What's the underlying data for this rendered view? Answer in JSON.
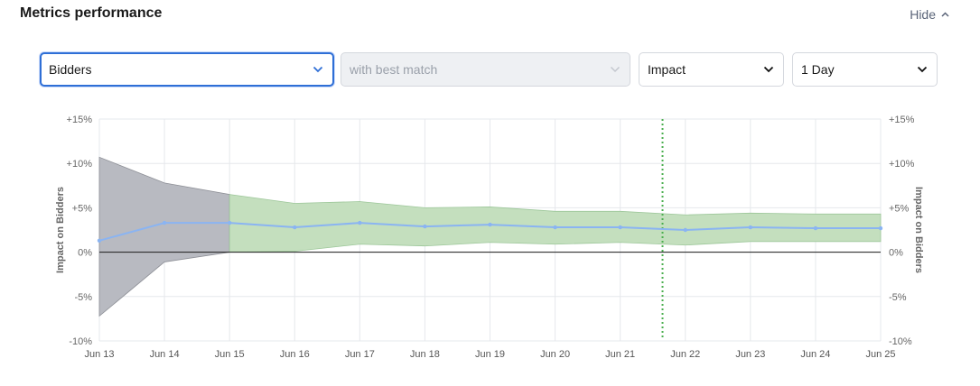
{
  "header": {
    "title": "Metrics performance",
    "hide_label": "Hide"
  },
  "controls": {
    "metric": {
      "value": "Bidders"
    },
    "compare": {
      "value": "with best match"
    },
    "mode": {
      "value": "Impact"
    },
    "period": {
      "value": "1 Day"
    }
  },
  "colors": {
    "focus_border": "#2f6fd6",
    "early_band": "#b8bac1",
    "band": "#c4dfbe",
    "line": "#8ab4f2",
    "marker": "#4caf50"
  },
  "chart_data": {
    "type": "area",
    "x": [
      "Jun 13",
      "Jun 14",
      "Jun 15",
      "Jun 16",
      "Jun 17",
      "Jun 18",
      "Jun 19",
      "Jun 20",
      "Jun 21",
      "Jun 22",
      "Jun 23",
      "Jun 24",
      "Jun 25"
    ],
    "series": [
      {
        "values": [
          1.3,
          3.3,
          3.3,
          2.8,
          3.3,
          2.9,
          3.1,
          2.8,
          2.8,
          2.5,
          2.8,
          2.7,
          2.7
        ]
      }
    ],
    "upper": [
      10.7,
      7.8,
      6.5,
      5.5,
      5.7,
      5.0,
      5.1,
      4.6,
      4.6,
      4.2,
      4.4,
      4.3,
      4.3
    ],
    "lower": [
      -7.2,
      -1.1,
      0.0,
      0.1,
      0.9,
      0.7,
      1.1,
      0.9,
      1.1,
      0.8,
      1.2,
      1.2,
      1.2
    ],
    "early_phase_end": "Jun 15",
    "marker_x": "Jun 21",
    "marker_offset": 0.65,
    "ylabel_left": "Impact on Bidders",
    "ylabel_right": "Impact on Bidders",
    "ylim": [
      -10,
      15
    ],
    "yticks": [
      "-10%",
      "-5%",
      "0%",
      "+5%",
      "+10%",
      "+15%"
    ],
    "ytick_values": [
      -10,
      -5,
      0,
      5,
      10,
      15
    ],
    "grid": true
  }
}
